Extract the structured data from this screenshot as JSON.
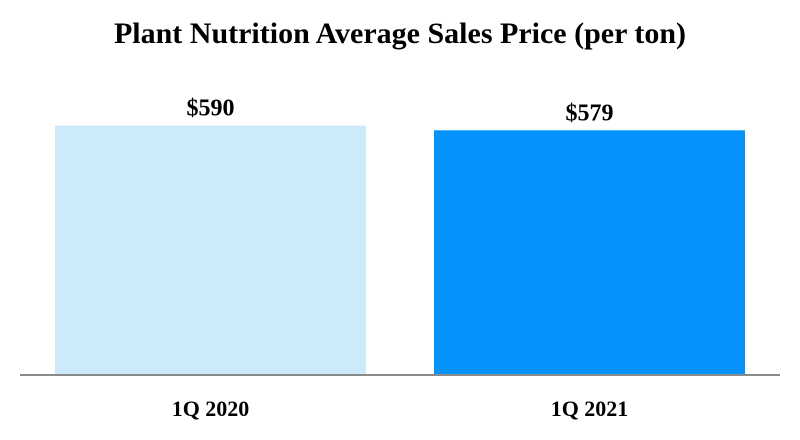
{
  "chart_data": {
    "type": "bar",
    "title": "Plant Nutrition Average Sales Price (per ton)",
    "categories": [
      "1Q 2020",
      "1Q 2021"
    ],
    "values": [
      590,
      579
    ],
    "value_labels": [
      "$590",
      "$579"
    ],
    "bar_colors": [
      "#cdeafb",
      "#0593fb"
    ],
    "ylim": [
      0,
      620
    ],
    "grid": false,
    "legend": "none"
  }
}
